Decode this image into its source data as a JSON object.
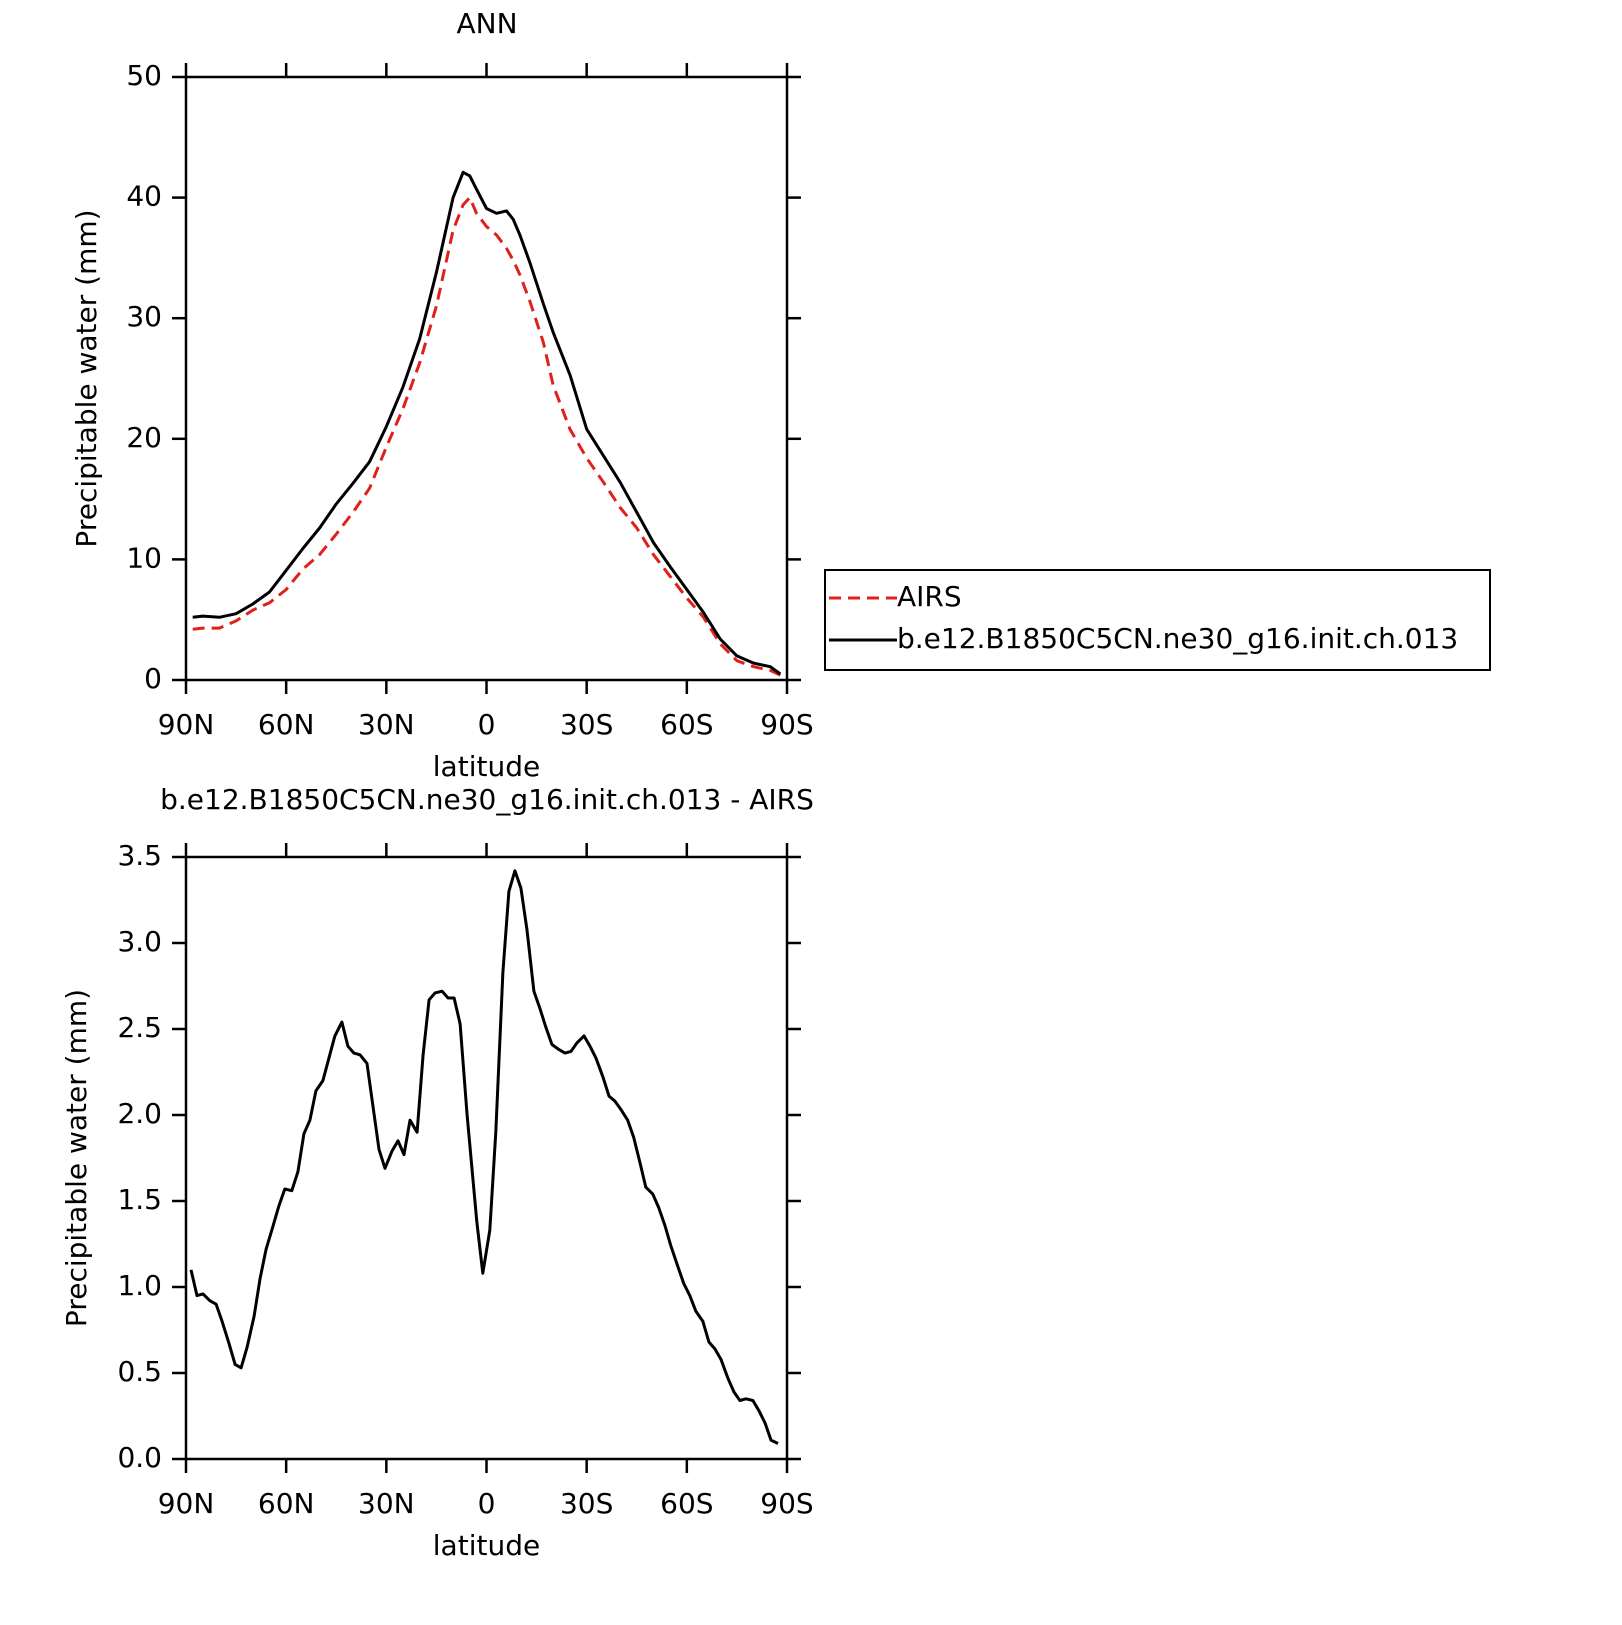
{
  "chart_data": [
    {
      "type": "line",
      "title": "ANN",
      "x_label": "latitude",
      "y_label": "Precipitable water (mm)",
      "x": [
        88,
        85,
        80,
        75,
        70,
        65,
        60,
        55,
        50,
        45,
        40,
        35,
        30,
        25,
        20,
        15,
        10,
        7,
        5,
        3,
        0,
        -3,
        -6,
        -8,
        -10,
        -13,
        -17,
        -20,
        -25,
        -30,
        -35,
        -40,
        -45,
        -50,
        -55,
        -60,
        -65,
        -70,
        -75,
        -80,
        -85,
        -88
      ],
      "xlim": [
        90,
        -90
      ],
      "xticks": [
        {
          "value": 90,
          "label": "90N"
        },
        {
          "value": 60,
          "label": "60N"
        },
        {
          "value": 30,
          "label": "30N"
        },
        0,
        {
          "value": -30,
          "label": "30S"
        },
        {
          "value": -60,
          "label": "60S"
        },
        {
          "value": -90,
          "label": "90S"
        }
      ],
      "ylim": [
        0,
        50
      ],
      "yticks": [
        0,
        10,
        20,
        30,
        40,
        50
      ],
      "legend": "right",
      "series": [
        {
          "name": "AIRS",
          "color": "#e0201b",
          "dashed": true,
          "values": [
            4.2,
            4.3,
            4.3,
            4.9,
            5.8,
            6.4,
            7.5,
            9.2,
            10.4,
            12.1,
            13.9,
            15.9,
            19.3,
            22.5,
            26.3,
            31.0,
            37.3,
            39.4,
            40.0,
            38.7,
            37.6,
            36.9,
            35.8,
            34.8,
            33.6,
            31.4,
            28.0,
            24.4,
            20.8,
            18.4,
            16.4,
            14.3,
            12.6,
            10.4,
            8.6,
            6.8,
            5.2,
            3.0,
            1.6,
            1.1,
            0.8,
            0.4
          ]
        },
        {
          "name": "b.e12.B1850C5CN.ne30_g16.init.ch.013",
          "color": "#000000",
          "dashed": false,
          "values": [
            5.2,
            5.3,
            5.2,
            5.5,
            6.3,
            7.3,
            9.1,
            10.9,
            12.6,
            14.6,
            16.3,
            18.1,
            21.0,
            24.3,
            28.3,
            33.8,
            40.0,
            42.1,
            41.8,
            40.7,
            39.1,
            38.7,
            38.9,
            38.2,
            36.9,
            34.6,
            31.2,
            28.8,
            25.3,
            20.8,
            18.6,
            16.4,
            13.9,
            11.4,
            9.4,
            7.5,
            5.6,
            3.4,
            2.0,
            1.4,
            1.1,
            0.5
          ]
        }
      ]
    },
    {
      "type": "line",
      "title": "b.e12.B1850C5CN.ne30_g16.init.ch.013 - AIRS",
      "x_label": "latitude",
      "y_label": "Precipitable water (mm)",
      "x": [
        88.5,
        86.7,
        84.9,
        82.8,
        81,
        79.2,
        77.1,
        75.3,
        73.5,
        71.7,
        69.6,
        67.8,
        66,
        64,
        62.2,
        60.4,
        58.3,
        56.5,
        54.7,
        52.9,
        51.1,
        49,
        47.2,
        45.4,
        43.3,
        41.5,
        39.7,
        37.9,
        35.8,
        34,
        32.2,
        30.4,
        28.3,
        26.5,
        24.7,
        22.9,
        20.8,
        19,
        17.2,
        15.4,
        13.3,
        11.5,
        9.7,
        7.9,
        5.8,
        2.9,
        1.1,
        -1,
        -2.8,
        -4.9,
        -6.7,
        -8.5,
        -10.3,
        -12.1,
        -14.2,
        -16,
        -17.8,
        -19.6,
        -21.7,
        -23.5,
        -25.3,
        -27.1,
        -29.2,
        -31,
        -32.8,
        -34.9,
        -36.7,
        -38.5,
        -40.3,
        -42.3,
        -44.1,
        -46,
        -47.7,
        -49.8,
        -51.6,
        -53.4,
        -55.2,
        -57.3,
        -59.1,
        -60.9,
        -62.7,
        -64.8,
        -66.6,
        -68.4,
        -70.2,
        -72.3,
        -74.1,
        -75.9,
        -77.7,
        -79.8,
        -81.6,
        -83.4,
        -85.2,
        -87.3
      ],
      "xlim": [
        90,
        -90
      ],
      "xticks": [
        {
          "value": 90,
          "label": "90N"
        },
        {
          "value": 60,
          "label": "60N"
        },
        {
          "value": 30,
          "label": "30N"
        },
        0,
        {
          "value": -30,
          "label": "30S"
        },
        {
          "value": -60,
          "label": "60S"
        },
        {
          "value": -90,
          "label": "90S"
        }
      ],
      "ylim": [
        0,
        3.5
      ],
      "yticks": [
        {
          "value": 0,
          "label": "0.0"
        },
        0.5,
        {
          "value": 1,
          "label": "1.0"
        },
        1.5,
        {
          "value": 2,
          "label": "2.0"
        },
        2.5,
        {
          "value": 3,
          "label": "3.0"
        },
        3.5
      ],
      "series": [
        {
          "color": "#000000",
          "dashed": false,
          "values": [
            1.1,
            0.95,
            0.96,
            0.92,
            0.9,
            0.8,
            0.67,
            0.55,
            0.53,
            0.65,
            0.83,
            1.05,
            1.22,
            1.35,
            1.47,
            1.57,
            1.56,
            1.67,
            1.89,
            1.97,
            2.14,
            2.2,
            2.33,
            2.46,
            2.54,
            2.4,
            2.36,
            2.35,
            2.3,
            2.05,
            1.8,
            1.69,
            1.79,
            1.85,
            1.77,
            1.97,
            1.9,
            2.35,
            2.67,
            2.71,
            2.72,
            2.68,
            2.68,
            2.53,
            2.0,
            1.38,
            1.08,
            1.33,
            1.9,
            2.83,
            3.3,
            3.42,
            3.32,
            3.08,
            2.72,
            2.62,
            2.51,
            2.41,
            2.38,
            2.36,
            2.37,
            2.42,
            2.46,
            2.4,
            2.33,
            2.22,
            2.11,
            2.08,
            2.03,
            1.97,
            1.87,
            1.72,
            1.58,
            1.54,
            1.46,
            1.36,
            1.24,
            1.12,
            1.02,
            0.95,
            0.86,
            0.8,
            0.68,
            0.64,
            0.58,
            0.47,
            0.39,
            0.34,
            0.35,
            0.34,
            0.28,
            0.21,
            0.11,
            0.09
          ]
        }
      ]
    }
  ]
}
